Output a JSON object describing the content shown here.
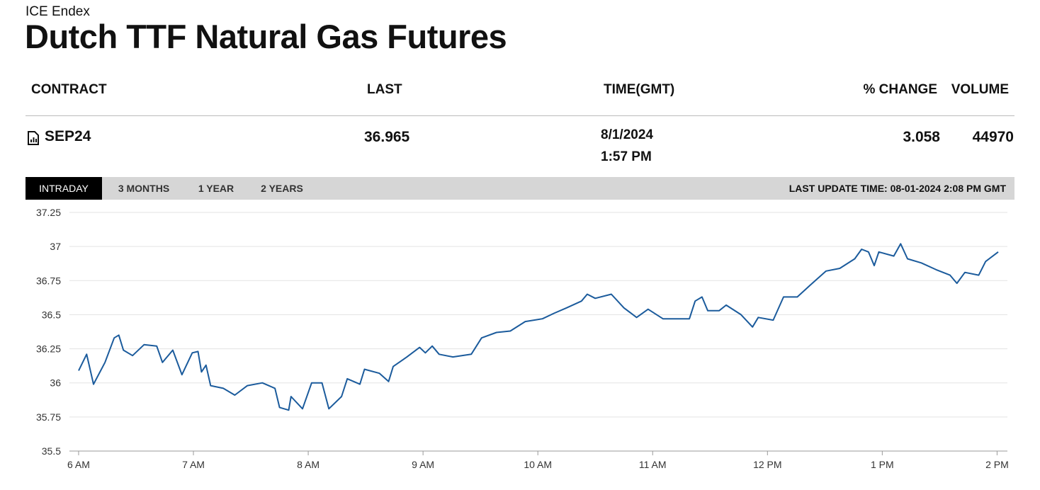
{
  "header": {
    "source": "ICE Endex",
    "title": "Dutch TTF Natural Gas Futures"
  },
  "table": {
    "columns": [
      "CONTRACT",
      "LAST",
      "TIME(GMT)",
      "% CHANGE",
      "VOLUME"
    ],
    "rows": [
      [
        "SEP24",
        36.965,
        [
          "8/1/2024",
          "1:57 PM"
        ],
        3.058,
        44970
      ]
    ]
  },
  "tabs": {
    "items": [
      "INTRADAY",
      "3 MONTHS",
      "1 YEAR",
      "2 YEARS"
    ],
    "active": 0,
    "last_update": "LAST UPDATE TIME: 08-01-2024 2:08 PM GMT"
  },
  "chart_data": {
    "type": "line",
    "color": "#1b5b9c",
    "grid": true,
    "x": [
      6.0,
      6.07,
      6.13,
      6.23,
      6.31,
      6.35,
      6.39,
      6.47,
      6.57,
      6.68,
      6.73,
      6.82,
      6.9,
      6.99,
      7.04,
      7.07,
      7.11,
      7.15,
      7.26,
      7.36,
      7.47,
      7.6,
      7.71,
      7.75,
      7.83,
      7.85,
      7.95,
      8.03,
      8.12,
      8.18,
      8.29,
      8.34,
      8.45,
      8.49,
      8.62,
      8.7,
      8.74,
      8.86,
      8.97,
      9.02,
      9.08,
      9.14,
      9.26,
      9.42,
      9.51,
      9.64,
      9.76,
      9.89,
      10.04,
      10.14,
      10.25,
      10.38,
      10.43,
      10.5,
      10.64,
      10.75,
      10.86,
      10.96,
      11.09,
      11.21,
      11.32,
      11.37,
      11.43,
      11.48,
      11.58,
      11.64,
      11.77,
      11.87,
      11.92,
      12.05,
      12.14,
      12.26,
      12.39,
      12.51,
      12.63,
      12.76,
      12.82,
      12.88,
      12.93,
      12.97,
      13.1,
      13.16,
      13.22,
      13.34,
      13.47,
      13.59,
      13.65,
      13.72,
      13.84,
      13.9,
      14.01
    ],
    "values": [
      36.09,
      36.21,
      35.99,
      36.15,
      36.33,
      36.35,
      36.24,
      36.2,
      36.28,
      36.27,
      36.15,
      36.24,
      36.06,
      36.22,
      36.23,
      36.08,
      36.13,
      35.98,
      35.96,
      35.91,
      35.98,
      36.0,
      35.96,
      35.82,
      35.8,
      35.9,
      35.81,
      36.0,
      36.0,
      35.81,
      35.9,
      36.03,
      35.99,
      36.1,
      36.07,
      36.01,
      36.12,
      36.19,
      36.26,
      36.22,
      36.27,
      36.21,
      36.19,
      36.21,
      36.33,
      36.37,
      36.38,
      36.45,
      36.47,
      36.51,
      36.55,
      36.6,
      36.65,
      36.62,
      36.65,
      36.55,
      36.48,
      36.54,
      36.47,
      36.47,
      36.47,
      36.6,
      36.63,
      36.53,
      36.53,
      36.57,
      36.5,
      36.41,
      36.48,
      36.46,
      36.63,
      36.63,
      36.73,
      36.82,
      36.84,
      36.91,
      36.98,
      36.96,
      36.86,
      36.96,
      36.93,
      37.02,
      36.91,
      36.88,
      36.83,
      36.79,
      36.73,
      36.81,
      36.79,
      36.89,
      36.96
    ],
    "xlim": [
      5.92,
      14.09
    ],
    "xticks": [
      {
        "value": 6,
        "label": "6 AM"
      },
      {
        "value": 7,
        "label": "7 AM"
      },
      {
        "value": 8,
        "label": "8 AM"
      },
      {
        "value": 9,
        "label": "9 AM"
      },
      {
        "value": 10,
        "label": "10 AM"
      },
      {
        "value": 11,
        "label": "11 AM"
      },
      {
        "value": 12,
        "label": "12 PM"
      },
      {
        "value": 13,
        "label": "1 PM"
      },
      {
        "value": 14,
        "label": "2 PM"
      }
    ],
    "ylim": [
      35.5,
      37.25
    ],
    "yticks": [
      35.5,
      35.75,
      36,
      36.25,
      36.5,
      36.75,
      37,
      37.25
    ]
  }
}
